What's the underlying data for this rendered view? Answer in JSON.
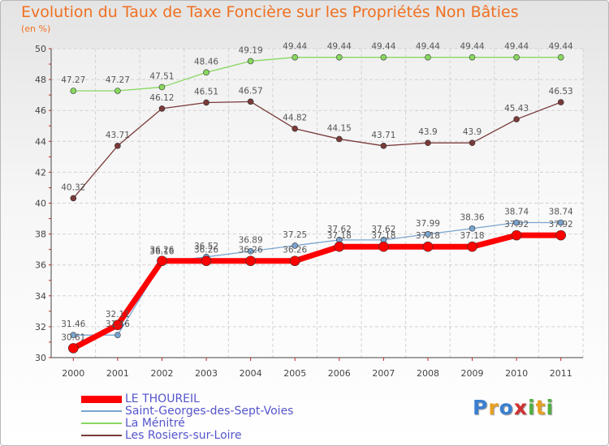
{
  "chart_data": {
    "type": "line",
    "title": "Evolution du Taux de Taxe Foncière sur les Propriétés Non Bâties",
    "subtitle": "(en %)",
    "x": [
      "2000",
      "2001",
      "2002",
      "2003",
      "2004",
      "2005",
      "2006",
      "2007",
      "2008",
      "2009",
      "2010",
      "2011"
    ],
    "ylim": [
      30,
      50
    ],
    "yticks": [
      "30",
      "32",
      "34",
      "36",
      "38",
      "40",
      "42",
      "44",
      "46",
      "48",
      "50"
    ],
    "grid": true,
    "legend_position": "bottom-left",
    "series": [
      {
        "name": "LE THOUREIL",
        "color": "#ff0000",
        "values": [
          30.61,
          32.11,
          36.26,
          36.26,
          36.26,
          36.26,
          37.18,
          37.18,
          37.18,
          37.18,
          37.92,
          37.92
        ],
        "labels": [
          "30.61",
          "32.11",
          "36.26",
          "36.26",
          "36.26",
          "36.26",
          "37.18",
          "37.18",
          "37.18",
          "37.18",
          "37.92",
          "37.92"
        ]
      },
      {
        "name": "Saint-Georges-des-Sept-Voies",
        "color": "#7aa4d0",
        "values": [
          31.46,
          31.46,
          36.16,
          36.52,
          36.89,
          37.25,
          37.62,
          37.62,
          37.99,
          38.36,
          38.74,
          38.74
        ],
        "labels": [
          "31.46",
          "31.46",
          "36.16",
          "36.52",
          "36.89",
          "37.25",
          "37.62",
          "37.62",
          "37.99",
          "38.36",
          "38.74",
          "38.74"
        ]
      },
      {
        "name": "La Ménitré",
        "color": "#88d860",
        "values": [
          47.27,
          47.27,
          47.51,
          48.46,
          49.19,
          49.44,
          49.44,
          49.44,
          49.44,
          49.44,
          49.44,
          49.44
        ],
        "labels": [
          "47.27",
          "47.27",
          "47.51",
          "48.46",
          "49.19",
          "49.44",
          "49.44",
          "49.44",
          "49.44",
          "49.44",
          "49.44",
          "49.44"
        ]
      },
      {
        "name": "Les Rosiers-sur-Loire",
        "color": "#7a3a3a",
        "values": [
          40.32,
          43.71,
          46.12,
          46.51,
          46.57,
          44.82,
          44.15,
          43.71,
          43.9,
          43.9,
          45.43,
          46.53
        ],
        "labels": [
          "40.32",
          "43.71",
          "46.12",
          "46.51",
          "46.57",
          "44.82",
          "44.15",
          "43.71",
          "43.9",
          "43.9",
          "45.43",
          "46.53"
        ]
      }
    ]
  },
  "brand": {
    "letters": [
      "P",
      "r",
      "o",
      "x",
      "i",
      "t",
      "i"
    ],
    "colors": [
      "#3a7fd0",
      "#e8a020",
      "#3a7fd0",
      "#d03030",
      "#50b040",
      "#e8a020",
      "#50b040"
    ]
  }
}
